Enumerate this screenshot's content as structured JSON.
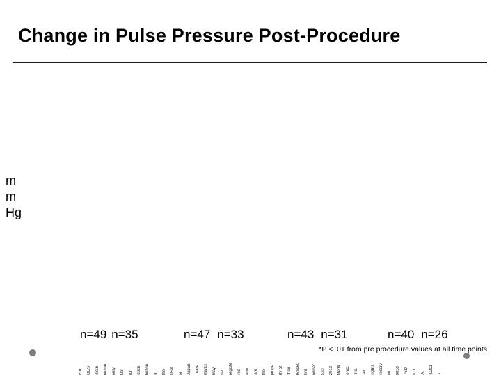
{
  "slide": {
    "title": "Change in Pulse Pressure Post-Procedure",
    "y_axis_label_lines": [
      "m",
      "m",
      "Hg"
    ],
    "groups": [
      {
        "pre": "n=49",
        "post": "n=35"
      },
      {
        "pre": "n=47",
        "post": "n=33"
      },
      {
        "pre": "n=43",
        "post": "n=31"
      },
      {
        "pre": "n=40",
        "post": "n=26"
      }
    ],
    "footnote": "*P < .01 from pre procedure values at all time points",
    "footer_tokens": [
      "For",
      "OUS",
      "distri",
      "bution",
      "only.",
      "Not",
      "for",
      "distri",
      "bution",
      "in",
      "the",
      "USA",
      "or",
      "Japan.",
      "Trade",
      "marks",
      "may",
      "be",
      "registe",
      "red",
      "and",
      "are",
      "the",
      "prope",
      "rty of",
      "their",
      "respec",
      "tive",
      "owner",
      "s. ©",
      "2013",
      "Medtr",
      "onic,",
      "Inc.",
      "All",
      "rights",
      "reserv",
      "ed.",
      "0059",
      "76D",
      "/C1",
      "A.",
      "4/201",
      "3"
    ],
    "colors": {
      "text": "#000000",
      "rule": "#1a1a1a",
      "corner_dot_gray": "#7d7d7d"
    }
  },
  "chart_data": {
    "type": "bar",
    "title": "Change in Pulse Pressure Post-Procedure",
    "ylabel": "mm Hg",
    "categories": [],
    "series": [],
    "group_sample_sizes": [
      [
        "n=49",
        "n=35"
      ],
      [
        "n=47",
        "n=33"
      ],
      [
        "n=43",
        "n=31"
      ],
      [
        "n=40",
        "n=26"
      ]
    ],
    "annotation": "*P < .01 from pre procedure values at all time points",
    "note": "plot area is blank in the screenshot; no bars, axis ticks, or numeric values are visible"
  }
}
